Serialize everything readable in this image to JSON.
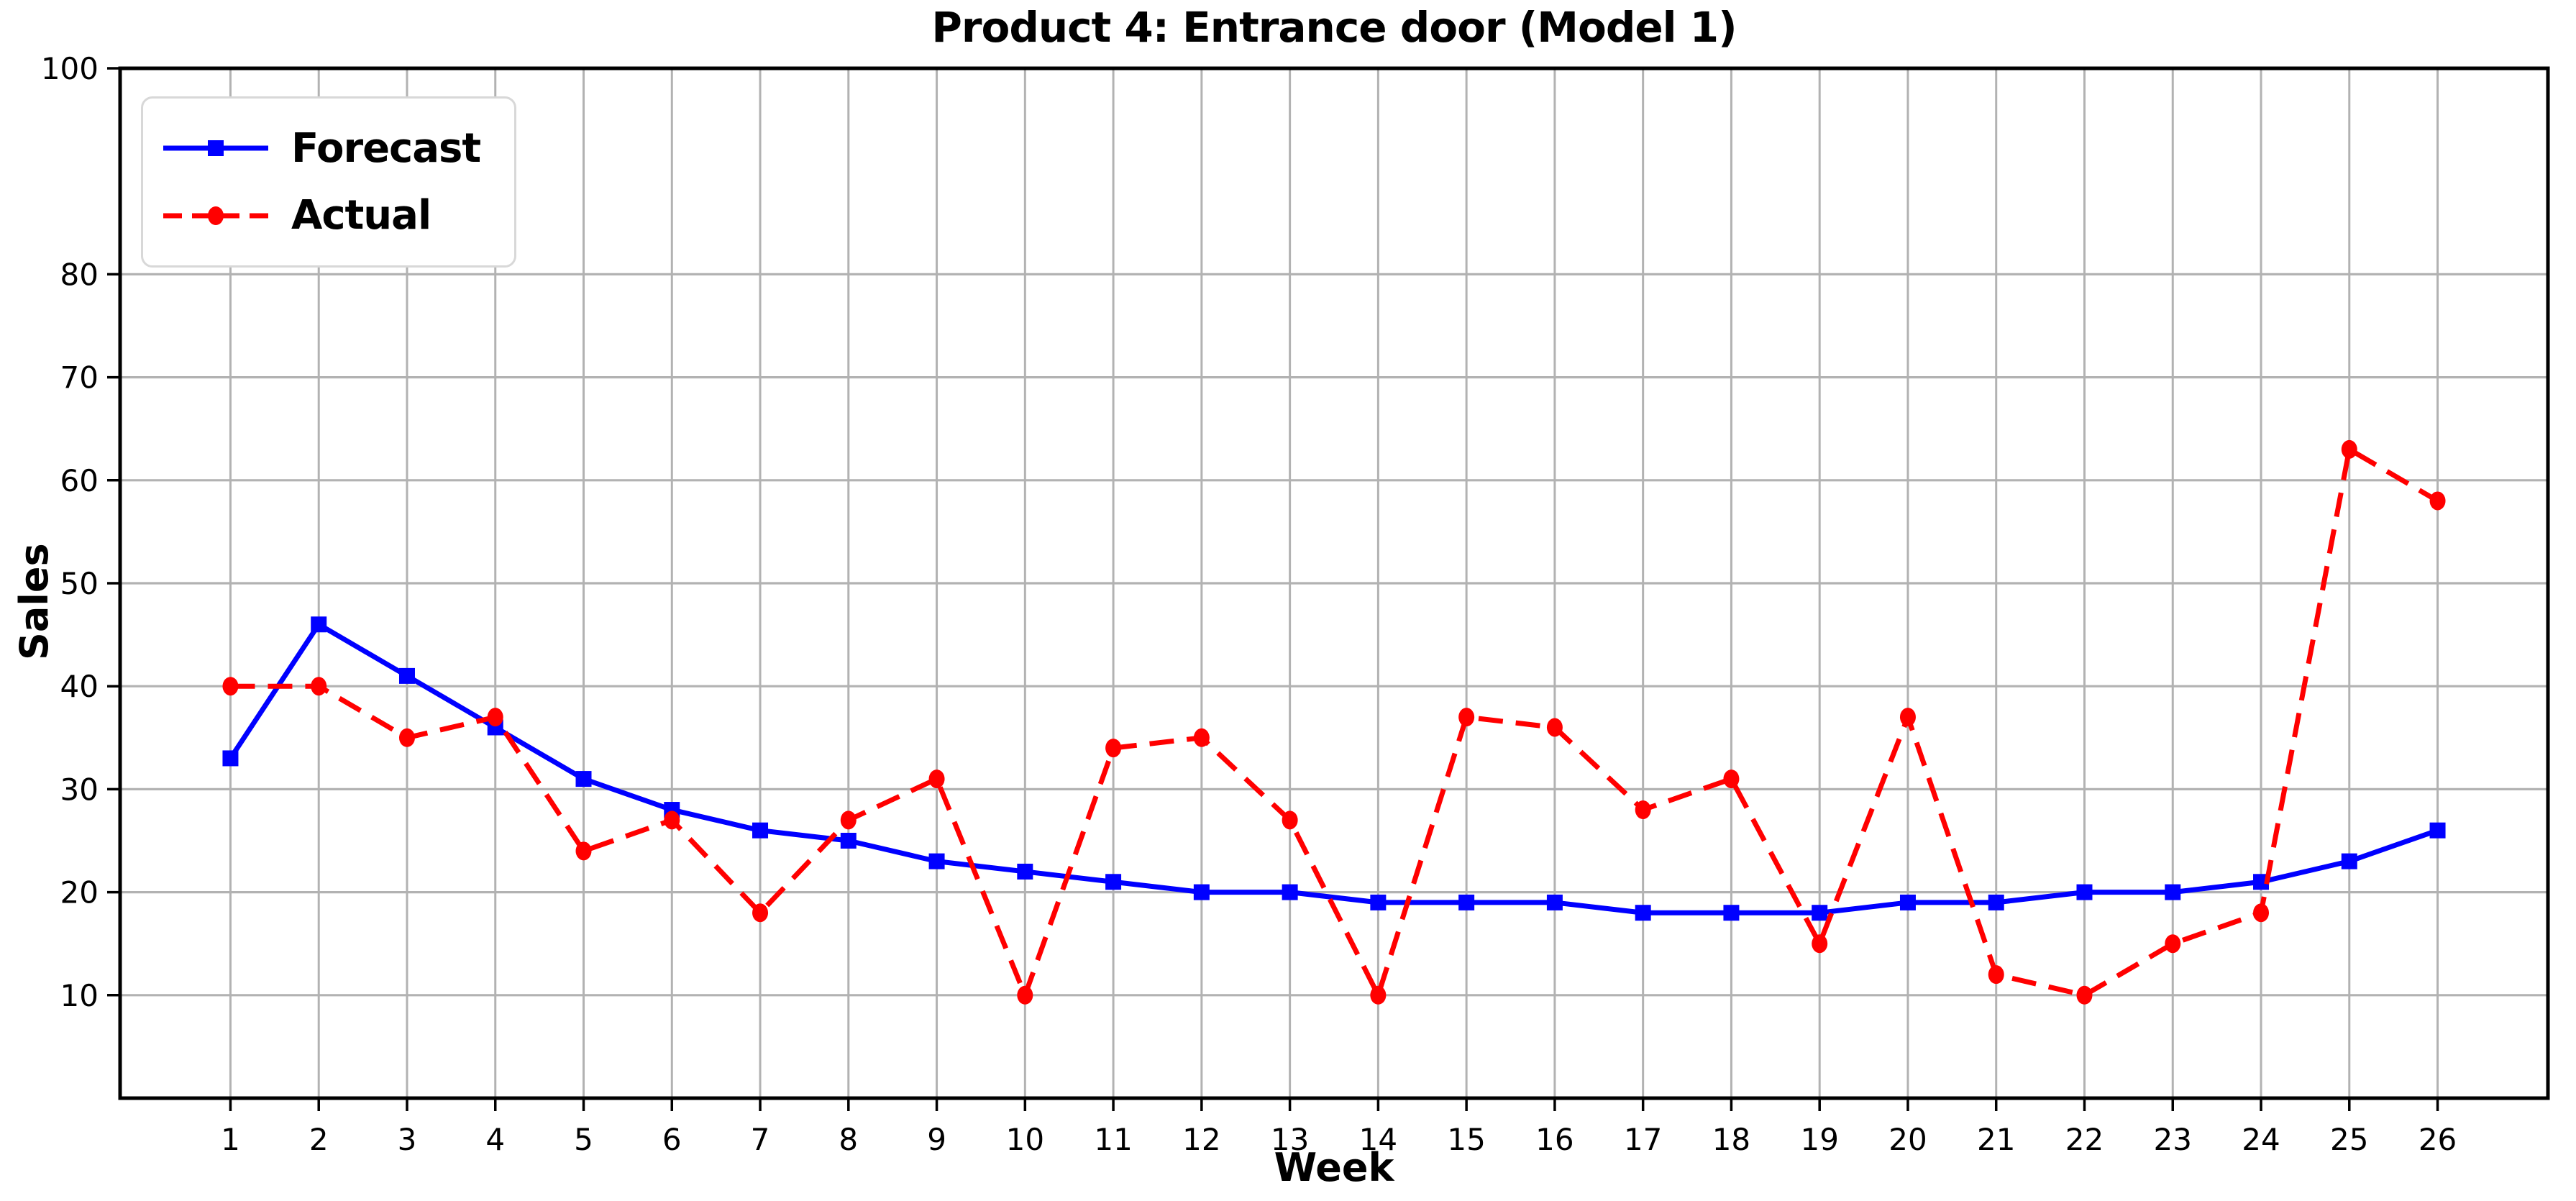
{
  "chart_data": {
    "type": "line",
    "title": "Product 4: Entrance door (Model 1)",
    "xlabel": "Week",
    "ylabel": "Sales",
    "x": [
      1,
      2,
      3,
      4,
      5,
      6,
      7,
      8,
      9,
      10,
      11,
      12,
      13,
      14,
      15,
      16,
      17,
      18,
      19,
      20,
      21,
      22,
      23,
      24,
      25,
      26
    ],
    "xticks": [
      1,
      2,
      3,
      4,
      5,
      6,
      7,
      8,
      9,
      10,
      11,
      12,
      13,
      14,
      15,
      16,
      17,
      18,
      19,
      20,
      21,
      22,
      23,
      24,
      25,
      26
    ],
    "yticks": [
      10,
      20,
      30,
      40,
      50,
      60,
      70,
      80,
      100
    ],
    "xlim": [
      -0.25,
      27.25
    ],
    "ylim": [
      0,
      100
    ],
    "grid": true,
    "legend_position": "upper-left",
    "series": [
      {
        "name": "Forecast",
        "color": "#0000ff",
        "line_style": "solid",
        "marker": "square",
        "values": [
          33,
          46,
          41,
          36,
          31,
          28,
          26,
          25,
          23,
          22,
          21,
          20,
          20,
          19,
          19,
          19,
          18,
          18,
          18,
          19,
          19,
          20,
          20,
          21,
          23,
          26
        ]
      },
      {
        "name": "Actual",
        "color": "#ff0000",
        "line_style": "dashed",
        "marker": "circle",
        "values": [
          40,
          40,
          35,
          37,
          24,
          27,
          18,
          27,
          31,
          10,
          34,
          35,
          27,
          10,
          37,
          36,
          28,
          31,
          15,
          37,
          12,
          10,
          15,
          18,
          63,
          58
        ]
      }
    ],
    "colors": {
      "background": "#ffffff",
      "grid": "#b2b2b2",
      "axis": "#000000",
      "legend_border": "#d8d8d8"
    }
  }
}
